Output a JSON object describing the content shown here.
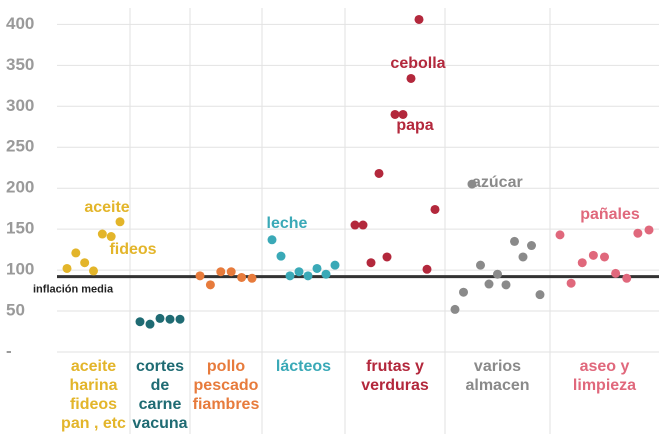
{
  "chart_data": {
    "type": "strip",
    "ylim": [
      0,
      420
    ],
    "yticks": [
      {
        "value": 0,
        "label": "-"
      },
      50,
      100,
      150,
      200,
      250,
      300,
      350,
      400
    ],
    "grid": true,
    "reference": {
      "value": 92,
      "label": "inflación media"
    },
    "series": [
      {
        "name": [
          "aceite",
          "harina",
          "fideos",
          "pan , etc"
        ],
        "color": "#e3b52a",
        "values": [
          102,
          121,
          109,
          99,
          144,
          141,
          159
        ],
        "annotations": [
          "aceite",
          "fideos"
        ]
      },
      {
        "name": [
          "cortes",
          "de",
          "carne",
          "vacuna"
        ],
        "color": "#1f6b73",
        "values": [
          37,
          34,
          41,
          40,
          40
        ],
        "annotations": []
      },
      {
        "name": [
          "pollo",
          "pescado",
          "fiambres"
        ],
        "color": "#e77b3c",
        "values": [
          93,
          82,
          98,
          98,
          91,
          90
        ],
        "annotations": []
      },
      {
        "name": [
          "lácteos"
        ],
        "color": "#3aa9b7",
        "values": [
          137,
          117,
          93,
          98,
          93,
          102,
          95,
          106
        ],
        "annotations": [
          "leche"
        ]
      },
      {
        "name": [
          "frutas y",
          "verduras"
        ],
        "color": "#b3283c",
        "values": [
          155,
          155,
          109,
          218,
          116,
          290,
          290,
          334,
          406,
          101,
          174
        ],
        "annotations": [
          "cebolla",
          "papa"
        ]
      },
      {
        "name": [
          "varios",
          "almacen"
        ],
        "color": "#8a8a8a",
        "values": [
          52,
          73,
          205,
          106,
          83,
          95,
          82,
          135,
          116,
          130,
          70
        ],
        "annotations": [
          "azúcar"
        ]
      },
      {
        "name": [
          "aseo y",
          "limpieza"
        ],
        "color": "#e0687c",
        "values": [
          143,
          84,
          109,
          118,
          116,
          96,
          90,
          145,
          149
        ],
        "annotations": [
          "pañales"
        ]
      }
    ]
  }
}
